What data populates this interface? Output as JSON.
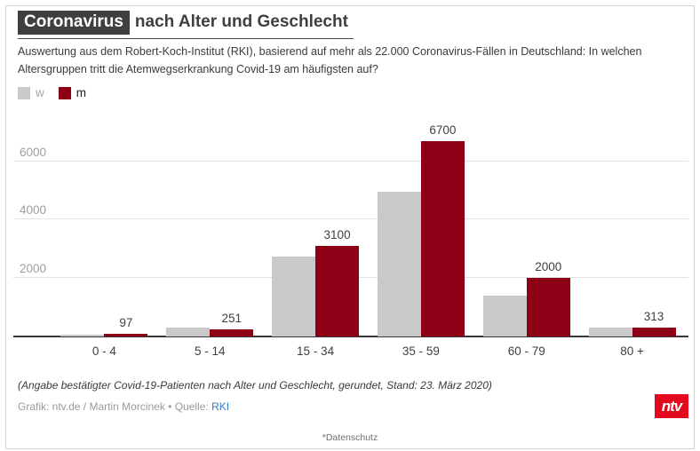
{
  "header": {
    "title_badge": "Coronavirus",
    "title_rest": "nach Alter und Geschlecht",
    "subtitle": "Auswertung aus dem Robert-Koch-Institut (RKI), basierend auf mehr als 22.000 Coronavirus-Fällen in Deutschland: In welchen Altersgruppen tritt die Atemwegserkrankung Covid-19 am häufigsten auf?"
  },
  "legend": {
    "w": {
      "label": "w",
      "color": "#c9c9c9"
    },
    "m": {
      "label": "m",
      "color": "#8e0016"
    }
  },
  "chart_data": {
    "type": "bar",
    "categories": [
      "0 - 4",
      "5 - 14",
      "15 - 34",
      "35 - 59",
      "60 - 79",
      "80 +"
    ],
    "series": [
      {
        "name": "w",
        "color": "#c9c9c9",
        "values": [
          50,
          300,
          2750,
          4950,
          1400,
          290
        ],
        "estimated": true,
        "labels_shown": false
      },
      {
        "name": "m",
        "color": "#8e0016",
        "values": [
          97,
          251,
          3100,
          6700,
          2000,
          313
        ],
        "estimated": false,
        "labels_shown": true
      }
    ],
    "ylim": [
      0,
      6800
    ],
    "yticks": [
      2000,
      4000,
      6000
    ],
    "grid": true,
    "legend_position": "top-left",
    "title": "Coronavirus nach Alter und Geschlecht",
    "xlabel": "",
    "ylabel": ""
  },
  "footer": {
    "note": "(Angabe bestätigter Covid-19-Patienten nach Alter und Geschlecht, gerundet, Stand: 23. März 2020)",
    "credits_prefix": "Grafik: ntv.de / Martin Morcinek • Quelle: ",
    "source_link": "RKI",
    "logo_text": "ntv",
    "privacy": "*Datenschutz"
  }
}
